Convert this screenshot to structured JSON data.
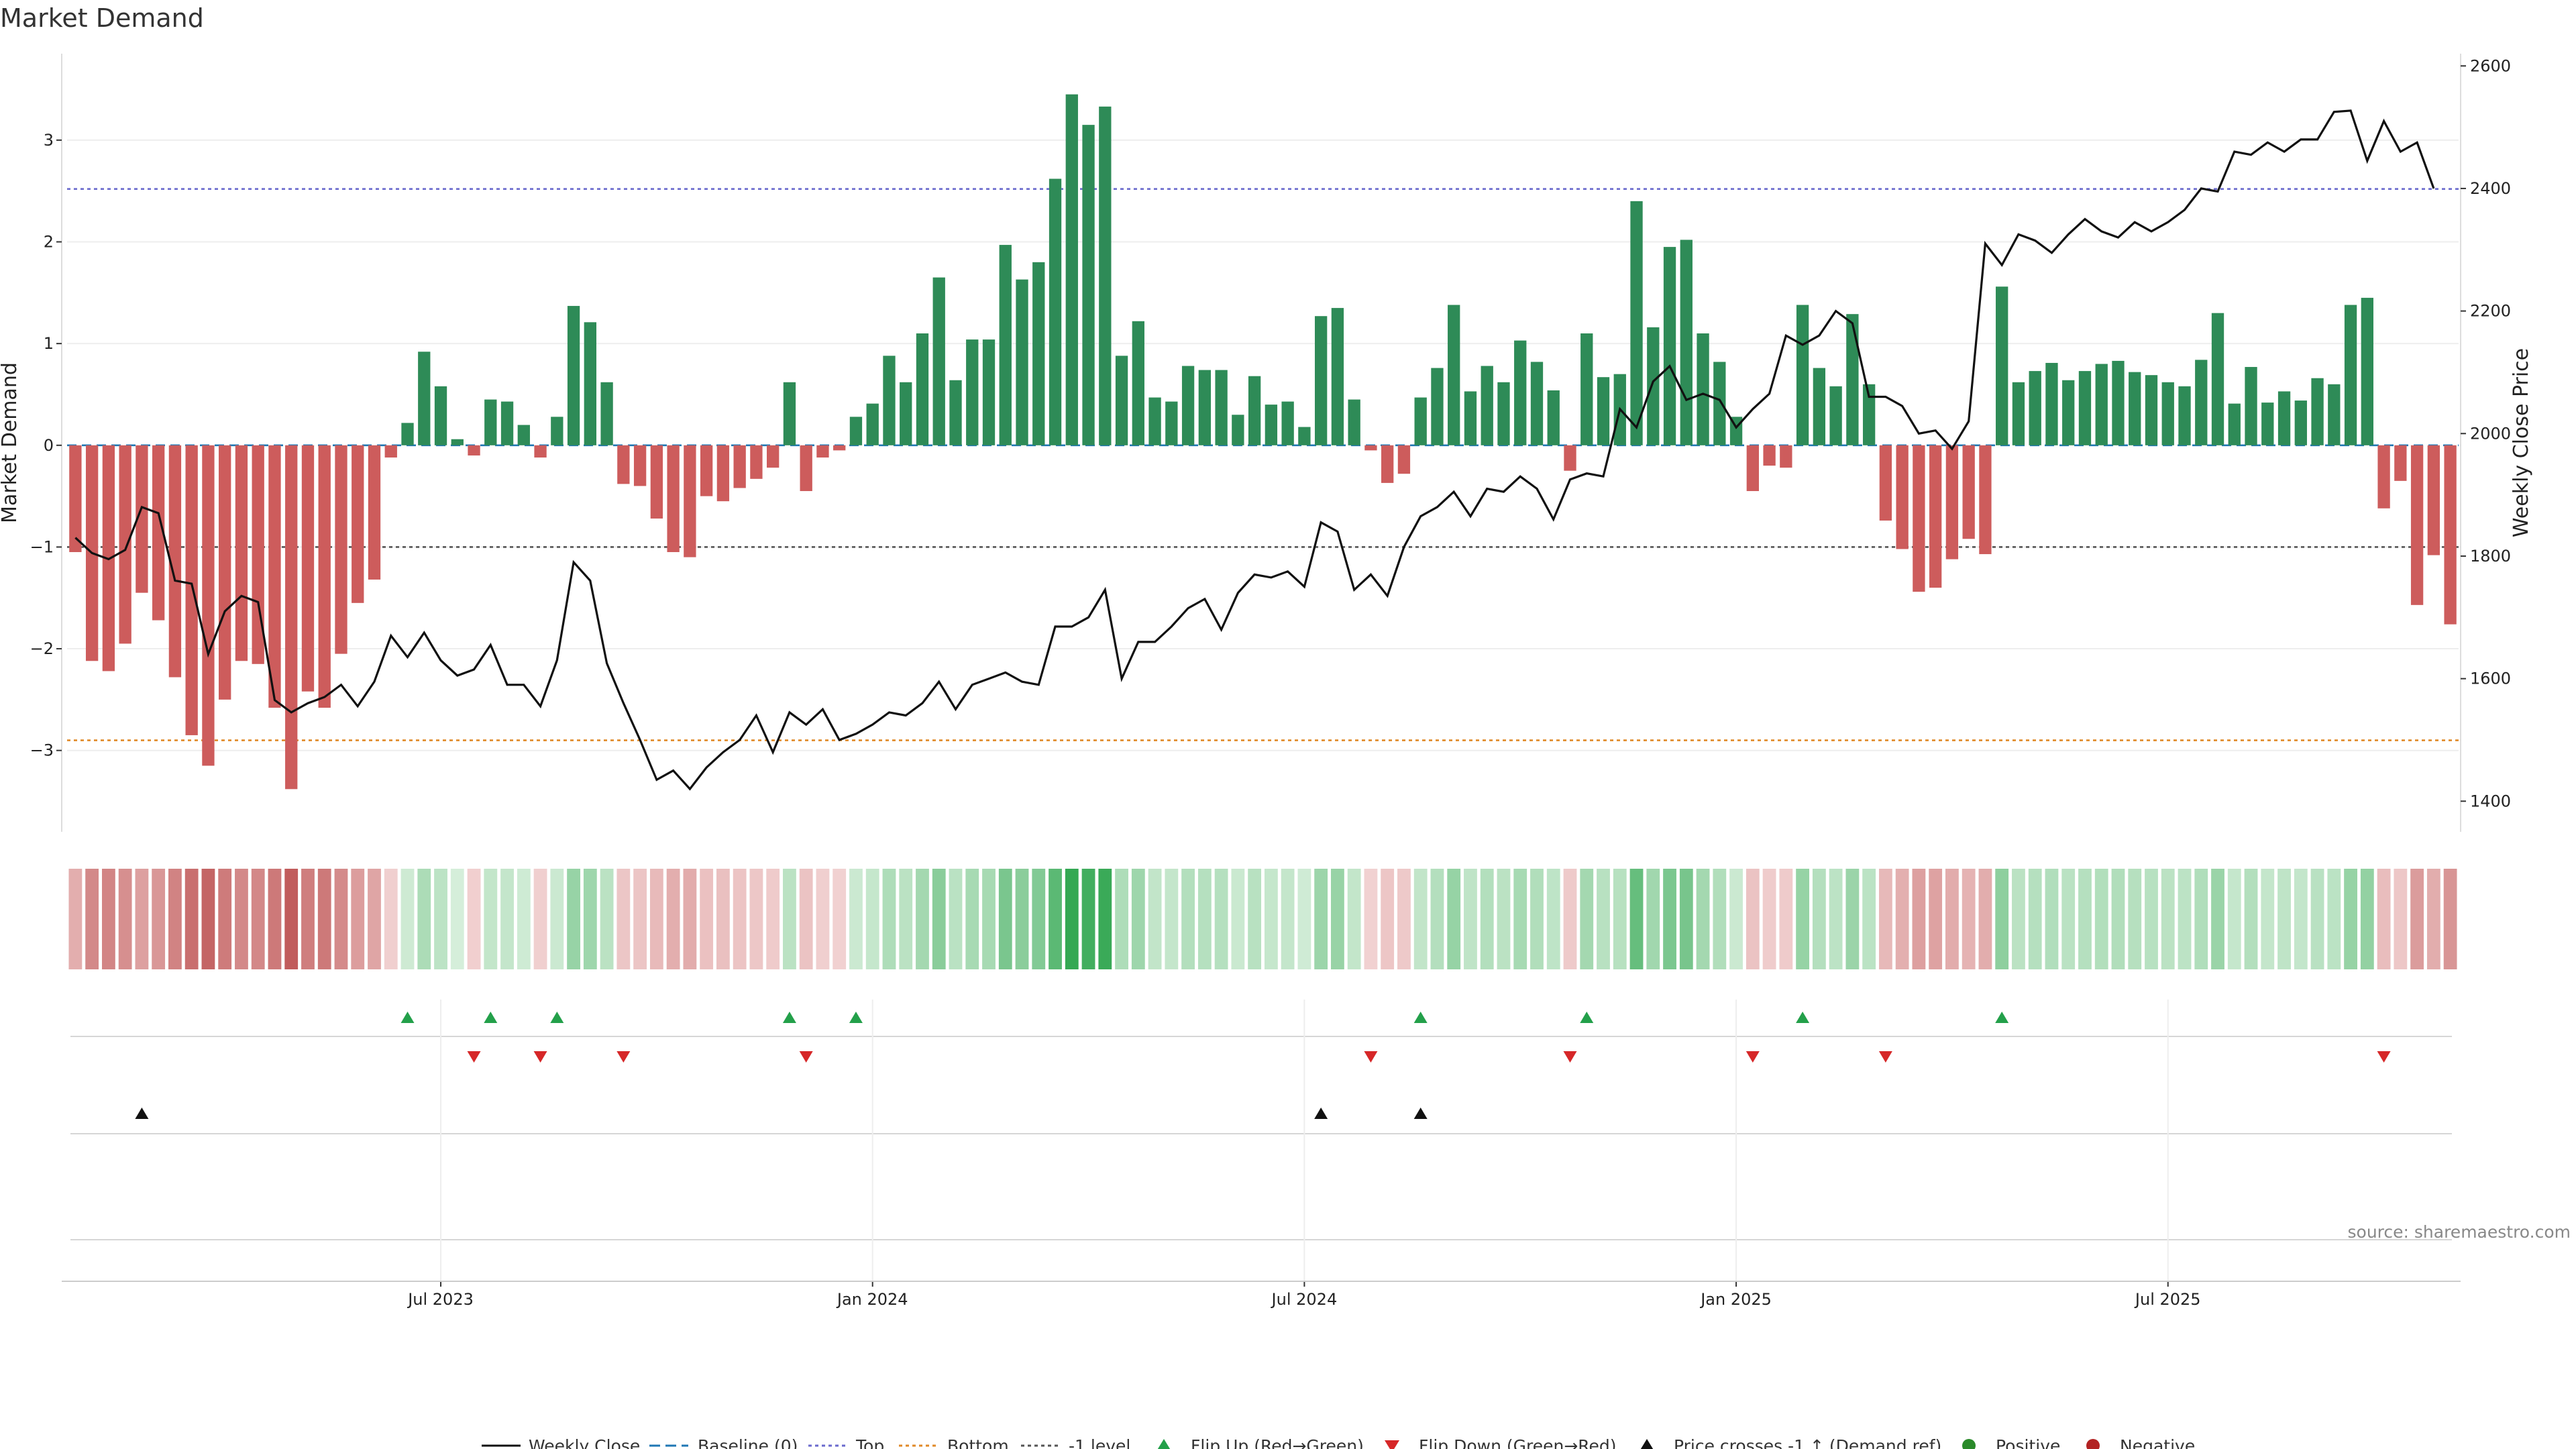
{
  "chart_data": {
    "type": "bar",
    "title": "Market Demand",
    "ylabel_left": "Market Demand",
    "ylabel_right": "Weekly Close Price",
    "y_left_range": [
      -3.8,
      3.85
    ],
    "y_left_ticks": [
      "3",
      "2",
      "1",
      "0",
      "−1",
      "−2",
      "−3"
    ],
    "y_left_tick_values": [
      3,
      2,
      1,
      0,
      -1,
      -2,
      -3
    ],
    "y_right_range": [
      1350,
      2620
    ],
    "y_right_ticks": [
      "2600",
      "2400",
      "2200",
      "2000",
      "1800",
      "1600",
      "1400"
    ],
    "y_right_tick_values": [
      2600,
      2400,
      2200,
      2000,
      1800,
      1600,
      1400
    ],
    "x_ticks": [
      "Jul 2023",
      "Jan 2024",
      "Jul 2024",
      "Jan 2025",
      "Jul 2025"
    ],
    "x_tick_week_index": [
      22,
      48,
      74,
      100,
      126
    ],
    "start_week": "2023-01-23",
    "reference_lines": {
      "top": 2.52,
      "bottom": -2.9,
      "minus_one": -1.0,
      "baseline": 0
    },
    "demand": [
      -1.05,
      -2.12,
      -2.22,
      -1.95,
      -1.45,
      -1.72,
      -2.28,
      -2.85,
      -3.15,
      -2.5,
      -2.12,
      -2.15,
      -2.58,
      -3.38,
      -2.42,
      -2.58,
      -2.05,
      -1.55,
      -1.32,
      -0.12,
      0.22,
      0.92,
      0.58,
      0.06,
      -0.1,
      0.45,
      0.43,
      0.2,
      -0.12,
      0.28,
      1.37,
      1.21,
      0.62,
      -0.38,
      -0.4,
      -0.72,
      -1.05,
      -1.1,
      -0.5,
      -0.55,
      -0.42,
      -0.33,
      -0.22,
      0.62,
      -0.45,
      -0.12,
      -0.05,
      0.28,
      0.41,
      0.88,
      0.62,
      1.1,
      1.65,
      0.64,
      1.04,
      1.04,
      1.97,
      1.63,
      1.8,
      2.62,
      3.45,
      3.15,
      3.33,
      0.88,
      1.22,
      0.47,
      0.43,
      0.78,
      0.74,
      0.74,
      0.3,
      0.68,
      0.4,
      0.43,
      0.18,
      1.27,
      1.35,
      0.45,
      -0.05,
      -0.37,
      -0.28,
      0.47,
      0.76,
      1.38,
      0.53,
      0.78,
      0.62,
      1.03,
      0.82,
      0.54,
      -0.25,
      1.1,
      0.67,
      0.7,
      2.4,
      1.16,
      1.95,
      2.02,
      1.1,
      0.82,
      0.28,
      -0.45,
      -0.2,
      -0.22,
      1.38,
      0.76,
      0.58,
      1.29,
      0.6,
      -0.74,
      -1.02,
      -1.44,
      -1.4,
      -1.12,
      -0.92,
      -1.07,
      1.56,
      0.62,
      0.73,
      0.81,
      0.64,
      0.73,
      0.8,
      0.83,
      0.72,
      0.69,
      0.62,
      0.58,
      0.84,
      1.3,
      0.41,
      0.77,
      0.42,
      0.53,
      0.44,
      0.66,
      0.6,
      1.38,
      1.45,
      -0.62,
      -0.35,
      -1.57,
      -1.08,
      -1.76
    ],
    "weekly_close": [
      1830,
      1805,
      1795,
      1810,
      1880,
      1870,
      1760,
      1755,
      1640,
      1710,
      1735,
      1725,
      1565,
      1545,
      1560,
      1570,
      1590,
      1555,
      1595,
      1670,
      1635,
      1675,
      1630,
      1605,
      1615,
      1655,
      1590,
      1590,
      1555,
      1630,
      1790,
      1760,
      1625,
      1560,
      1500,
      1435,
      1450,
      1420,
      1455,
      1480,
      1500,
      1540,
      1480,
      1545,
      1525,
      1550,
      1500,
      1510,
      1525,
      1545,
      1540,
      1560,
      1595,
      1550,
      1590,
      1600,
      1610,
      1595,
      1590,
      1685,
      1685,
      1700,
      1745,
      1600,
      1660,
      1660,
      1685,
      1715,
      1730,
      1680,
      1740,
      1770,
      1765,
      1775,
      1750,
      1855,
      1840,
      1745,
      1770,
      1735,
      1815,
      1865,
      1880,
      1905,
      1865,
      1910,
      1905,
      1930,
      1910,
      1860,
      1925,
      1935,
      1930,
      2040,
      2010,
      2085,
      2110,
      2055,
      2065,
      2055,
      2010,
      2040,
      2065,
      2160,
      2145,
      2160,
      2200,
      2180,
      2060,
      2060,
      2045,
      2000,
      2005,
      1975,
      2020,
      2310,
      2275,
      2325,
      2315,
      2295,
      2325,
      2350,
      2330,
      2320,
      2345,
      2330,
      2345,
      2365,
      2400,
      2395,
      2460,
      2455,
      2475,
      2460,
      2480,
      2480,
      2525,
      2527,
      2445,
      2510,
      2460,
      2475,
      2400
    ],
    "flip_up_weeks": [
      20,
      25,
      29,
      43,
      47,
      81,
      91,
      104,
      116
    ],
    "flip_down_weeks": [
      24,
      28,
      33,
      44,
      78,
      90,
      101,
      109,
      139
    ],
    "price_cross_weeks": [
      4,
      75,
      81
    ],
    "legend": [
      "Weekly Close",
      "Baseline (0)",
      "Top",
      "Bottom",
      "-1 level",
      "Flip Up (Red→Green)",
      "Flip Down (Green→Red)",
      "Price crosses -1 ↑ (Demand ref)",
      "Positive",
      "Negative"
    ],
    "colors": {
      "positive": "#2e8b57",
      "negative": "#cd5c5c",
      "price": "#111111",
      "baseline": "#1f77b4",
      "top": "#6a6acd",
      "bottom": "#e08a28",
      "minus_one": "#555555",
      "flip_up": "#23a04a",
      "flip_down": "#d62728",
      "cross": "#111111",
      "legend_pos": "#2a8a2a",
      "legend_neg": "#b22222"
    },
    "source": "source: sharemaestro.com"
  }
}
